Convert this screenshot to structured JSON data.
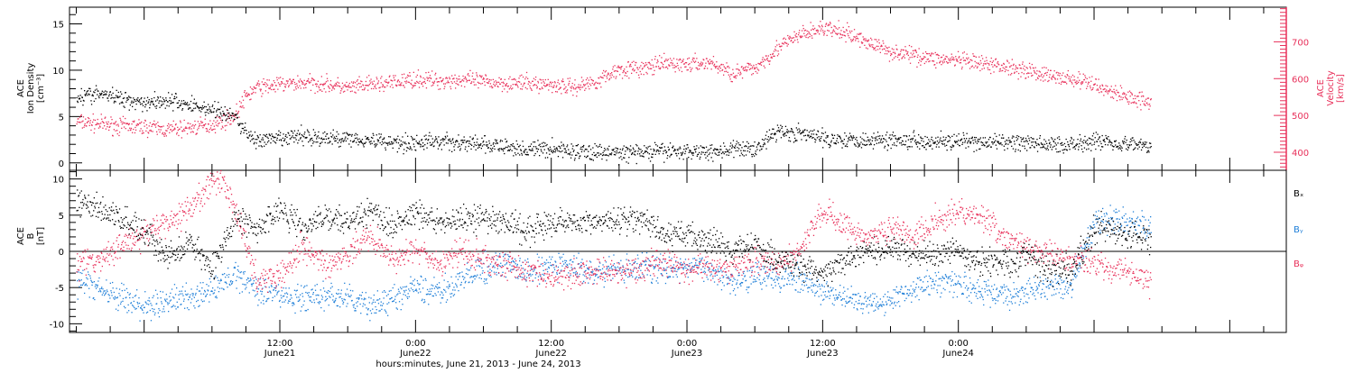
{
  "colors": {
    "density": "#000000",
    "velocity": "#e8305a",
    "bx": "#000000",
    "by": "#1f7fd8",
    "bz": "#e8305a",
    "axis": "#000000"
  },
  "chart_data": [
    {
      "type": "scatter",
      "panel": "top",
      "ylabel_left": [
        "ACE",
        "Ion Density",
        "[cm⁻³]"
      ],
      "ylabel_right": [
        "ACE",
        "Velocity",
        "[km/s]"
      ],
      "ylim_left": [
        -0.8,
        16.8
      ],
      "ylim_right": [
        351,
        794
      ],
      "yticks_left": [
        0,
        5,
        10,
        15
      ],
      "yticks_right": [
        400,
        500,
        600,
        700
      ],
      "grid": false,
      "series": [
        {
          "axis": "left",
          "color": "#000000",
          "points": [
            [
              -6,
              7.2
            ],
            [
              -4,
              7.5
            ],
            [
              -2,
              7.0
            ],
            [
              0,
              6.6
            ],
            [
              2,
              6.8
            ],
            [
              4,
              6.3
            ],
            [
              6,
              5.8
            ],
            [
              8,
              5.0
            ],
            [
              9,
              3.3
            ],
            [
              10,
              2.4
            ],
            [
              12,
              2.6
            ],
            [
              14,
              3.0
            ],
            [
              16,
              2.6
            ],
            [
              18,
              2.8
            ],
            [
              20,
              2.5
            ],
            [
              22,
              2.3
            ],
            [
              24,
              2.2
            ],
            [
              26,
              2.4
            ],
            [
              28,
              2.2
            ],
            [
              30,
              2.0
            ],
            [
              32,
              1.7
            ],
            [
              34,
              1.5
            ],
            [
              36,
              1.6
            ],
            [
              38,
              1.3
            ],
            [
              40,
              1.2
            ],
            [
              42,
              1.1
            ],
            [
              44,
              1.2
            ],
            [
              46,
              1.3
            ],
            [
              48,
              1.3
            ],
            [
              50,
              1.3
            ],
            [
              52,
              1.5
            ],
            [
              54,
              1.6
            ],
            [
              56,
              3.5
            ],
            [
              58,
              3.2
            ],
            [
              60,
              2.7
            ],
            [
              62,
              2.6
            ],
            [
              64,
              2.5
            ],
            [
              66,
              2.6
            ],
            [
              68,
              2.5
            ],
            [
              70,
              2.4
            ],
            [
              72,
              2.3
            ],
            [
              74,
              2.2
            ],
            [
              76,
              2.3
            ],
            [
              78,
              2.2
            ],
            [
              80,
              2.0
            ],
            [
              82,
              2.1
            ],
            [
              84,
              2.5
            ],
            [
              86,
              2.2
            ],
            [
              88,
              2.0
            ],
            [
              89,
              1.8
            ]
          ]
        },
        {
          "axis": "right",
          "color": "#e8305a",
          "points": [
            [
              -6,
              485
            ],
            [
              -4,
              478
            ],
            [
              -2,
              472
            ],
            [
              0,
              470
            ],
            [
              2,
              462
            ],
            [
              4,
              468
            ],
            [
              6,
              476
            ],
            [
              8,
              500
            ],
            [
              9,
              555
            ],
            [
              10,
              578
            ],
            [
              12,
              585
            ],
            [
              14,
              590
            ],
            [
              16,
              587
            ],
            [
              18,
              575
            ],
            [
              20,
              585
            ],
            [
              22,
              590
            ],
            [
              24,
              600
            ],
            [
              26,
              595
            ],
            [
              28,
              598
            ],
            [
              30,
              592
            ],
            [
              32,
              590
            ],
            [
              34,
              588
            ],
            [
              36,
              585
            ],
            [
              38,
              578
            ],
            [
              40,
              595
            ],
            [
              42,
              628
            ],
            [
              44,
              628
            ],
            [
              46,
              642
            ],
            [
              48,
              640
            ],
            [
              50,
              645
            ],
            [
              52,
              615
            ],
            [
              54,
              630
            ],
            [
              56,
              685
            ],
            [
              58,
              720
            ],
            [
              60,
              738
            ],
            [
              62,
              725
            ],
            [
              64,
              700
            ],
            [
              66,
              675
            ],
            [
              68,
              665
            ],
            [
              70,
              655
            ],
            [
              72,
              650
            ],
            [
              74,
              640
            ],
            [
              76,
              635
            ],
            [
              78,
              625
            ],
            [
              80,
              608
            ],
            [
              82,
              600
            ],
            [
              84,
              585
            ],
            [
              86,
              560
            ],
            [
              88,
              545
            ],
            [
              89,
              540
            ]
          ]
        }
      ]
    },
    {
      "type": "scatter",
      "panel": "bottom",
      "ylabel": [
        "ACE",
        "B",
        "[nT]"
      ],
      "ylim": [
        -11.2,
        11.2
      ],
      "yticks": [
        -10,
        -5,
        0,
        5,
        10
      ],
      "zero_line": true,
      "grid": false,
      "series": [
        {
          "name": "Bₓ",
          "color": "#000000",
          "points": [
            [
              -6,
              7.5
            ],
            [
              -4,
              6.0
            ],
            [
              -2,
              4.5
            ],
            [
              0,
              3.0
            ],
            [
              2,
              -1.0
            ],
            [
              4,
              1.5
            ],
            [
              6,
              -2.5
            ],
            [
              8,
              5.0
            ],
            [
              10,
              3.0
            ],
            [
              12,
              6.0
            ],
            [
              14,
              3.5
            ],
            [
              16,
              5.0
            ],
            [
              18,
              4.0
            ],
            [
              20,
              5.5
            ],
            [
              22,
              3.5
            ],
            [
              24,
              5.5
            ],
            [
              26,
              4.0
            ],
            [
              28,
              4.5
            ],
            [
              30,
              4.5
            ],
            [
              32,
              4.0
            ],
            [
              34,
              3.0
            ],
            [
              36,
              4.0
            ],
            [
              38,
              4.5
            ],
            [
              40,
              4.0
            ],
            [
              42,
              4.5
            ],
            [
              44,
              4.5
            ],
            [
              46,
              2.0
            ],
            [
              48,
              2.5
            ],
            [
              50,
              1.5
            ],
            [
              52,
              0.5
            ],
            [
              54,
              1.0
            ],
            [
              56,
              -1.5
            ],
            [
              58,
              -2.0
            ],
            [
              60,
              -3.0
            ],
            [
              62,
              -1.0
            ],
            [
              64,
              0.0
            ],
            [
              66,
              0.5
            ],
            [
              68,
              -0.5
            ],
            [
              70,
              -0.5
            ],
            [
              72,
              0.0
            ],
            [
              74,
              -1.5
            ],
            [
              76,
              -1.5
            ],
            [
              78,
              -0.5
            ],
            [
              80,
              -2.5
            ],
            [
              82,
              -2.5
            ],
            [
              84,
              3.5
            ],
            [
              86,
              3.0
            ],
            [
              88,
              2.0
            ],
            [
              89,
              1.5
            ]
          ]
        },
        {
          "name": "Bᵧ",
          "color": "#1f7fd8",
          "points": [
            [
              -6,
              -4.0
            ],
            [
              -4,
              -5.0
            ],
            [
              -2,
              -6.5
            ],
            [
              0,
              -7.5
            ],
            [
              2,
              -7.0
            ],
            [
              4,
              -6.0
            ],
            [
              6,
              -5.5
            ],
            [
              8,
              -3.0
            ],
            [
              10,
              -5.0
            ],
            [
              12,
              -6.0
            ],
            [
              14,
              -6.5
            ],
            [
              16,
              -6.0
            ],
            [
              18,
              -6.5
            ],
            [
              20,
              -7.5
            ],
            [
              22,
              -6.5
            ],
            [
              24,
              -5.0
            ],
            [
              26,
              -5.5
            ],
            [
              28,
              -4.0
            ],
            [
              30,
              -2.5
            ],
            [
              32,
              -1.5
            ],
            [
              34,
              -3.0
            ],
            [
              36,
              -2.0
            ],
            [
              38,
              -2.0
            ],
            [
              40,
              -3.0
            ],
            [
              42,
              -2.5
            ],
            [
              44,
              -2.0
            ],
            [
              46,
              -2.5
            ],
            [
              48,
              -2.0
            ],
            [
              50,
              -2.5
            ],
            [
              52,
              -4.0
            ],
            [
              54,
              -3.0
            ],
            [
              56,
              -3.5
            ],
            [
              58,
              -4.0
            ],
            [
              60,
              -5.5
            ],
            [
              62,
              -6.5
            ],
            [
              64,
              -7.0
            ],
            [
              66,
              -6.5
            ],
            [
              68,
              -5.0
            ],
            [
              70,
              -4.0
            ],
            [
              72,
              -4.5
            ],
            [
              74,
              -5.5
            ],
            [
              76,
              -6.0
            ],
            [
              78,
              -5.5
            ],
            [
              80,
              -5.0
            ],
            [
              82,
              -4.5
            ],
            [
              84,
              4.0
            ],
            [
              86,
              4.5
            ],
            [
              88,
              4.0
            ],
            [
              89,
              3.5
            ]
          ]
        },
        {
          "name": "Bᵩ",
          "color": "#e8305a",
          "points": [
            [
              -6,
              -2.0
            ],
            [
              -4,
              -1.0
            ],
            [
              -2,
              1.0
            ],
            [
              0,
              2.5
            ],
            [
              2,
              4.0
            ],
            [
              4,
              6.0
            ],
            [
              6,
              9.5
            ],
            [
              7,
              10.0
            ],
            [
              8,
              6.0
            ],
            [
              10,
              -4.0
            ],
            [
              12,
              -3.0
            ],
            [
              14,
              1.0
            ],
            [
              16,
              -2.0
            ],
            [
              18,
              0.0
            ],
            [
              20,
              2.0
            ],
            [
              22,
              -1.0
            ],
            [
              24,
              0.5
            ],
            [
              26,
              -2.0
            ],
            [
              28,
              0.0
            ],
            [
              30,
              -1.0
            ],
            [
              32,
              -2.0
            ],
            [
              34,
              -2.5
            ],
            [
              36,
              -3.5
            ],
            [
              38,
              -3.0
            ],
            [
              40,
              -2.5
            ],
            [
              42,
              -3.0
            ],
            [
              44,
              -2.0
            ],
            [
              46,
              -1.5
            ],
            [
              48,
              -2.5
            ],
            [
              50,
              -2.0
            ],
            [
              52,
              -2.5
            ],
            [
              54,
              -1.0
            ],
            [
              56,
              -2.0
            ],
            [
              58,
              0.0
            ],
            [
              60,
              6.0
            ],
            [
              62,
              3.5
            ],
            [
              64,
              2.0
            ],
            [
              66,
              3.5
            ],
            [
              68,
              2.0
            ],
            [
              70,
              4.5
            ],
            [
              72,
              5.5
            ],
            [
              74,
              5.0
            ],
            [
              76,
              2.0
            ],
            [
              78,
              0.5
            ],
            [
              80,
              -0.5
            ],
            [
              82,
              -1.0
            ],
            [
              84,
              -1.5
            ],
            [
              86,
              -2.5
            ],
            [
              88,
              -3.5
            ],
            [
              89,
              -4.0
            ]
          ]
        }
      ],
      "legend_placement": "right"
    }
  ],
  "x_axis": {
    "unit": "hours since June 21, 2013 0:00",
    "xlim": [
      -6.6,
      101
    ],
    "major_ticks": [
      {
        "x": 12,
        "time": "12:00",
        "day": "June21"
      },
      {
        "x": 24,
        "time": "0:00",
        "day": "June22"
      },
      {
        "x": 36,
        "time": "12:00",
        "day": "June22"
      },
      {
        "x": 48,
        "time": "0:00",
        "day": "June23"
      },
      {
        "x": 60,
        "time": "12:00",
        "day": "June23"
      },
      {
        "x": 72,
        "time": "0:00",
        "day": "June24"
      }
    ],
    "title": "hours:minutes, June 21, 2013 - June 24, 2013"
  }
}
